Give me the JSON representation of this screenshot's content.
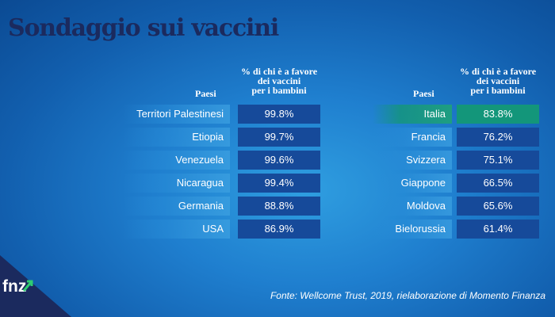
{
  "title": "Sondaggio sui vaccini",
  "column_header": "% di chi è a favore dei vaccini per i bambini",
  "column_header_lines": [
    "% di chi è a favore",
    "dei vaccini",
    "per i bambini"
  ],
  "countries_header": "Paesi",
  "source": "Fonte: Wellcome Trust, 2019, rielaborazione di Momento Finanza",
  "logo_text": "fnz",
  "colors": {
    "title": "#1b2a5e",
    "value_cell": "#164a9a",
    "highlight": "#13967a",
    "background": "#1f7fcf"
  },
  "chart_data": {
    "type": "table",
    "title": "Sondaggio sui vaccini",
    "columns": [
      "Paesi",
      "% di chi è a favore dei vaccini per i bambini"
    ],
    "highlighted": "Italia",
    "tables": [
      {
        "rows": [
          {
            "country": "Territori Palestinesi",
            "label": "99.8%",
            "value": 99.8
          },
          {
            "country": "Etiopia",
            "label": "99.7%",
            "value": 99.7
          },
          {
            "country": "Venezuela",
            "label": "99.6%",
            "value": 99.6
          },
          {
            "country": "Nicaragua",
            "label": "99.4%",
            "value": 99.4
          },
          {
            "country": "Germania",
            "label": "88.8%",
            "value": 88.8
          },
          {
            "country": "USA",
            "label": "86.9%",
            "value": 86.9
          }
        ]
      },
      {
        "rows": [
          {
            "country": "Italia",
            "label": "83.8%",
            "value": 83.8
          },
          {
            "country": "Francia",
            "label": "76.2%",
            "value": 76.2
          },
          {
            "country": "Svizzera",
            "label": "75.1%",
            "value": 75.1
          },
          {
            "country": "Giappone",
            "label": "66.5%",
            "value": 66.5
          },
          {
            "country": "Moldova",
            "label": "65.6%",
            "value": 65.6
          },
          {
            "country": "Bielorussia",
            "label": "61.4%",
            "value": 61.4
          }
        ]
      }
    ]
  }
}
